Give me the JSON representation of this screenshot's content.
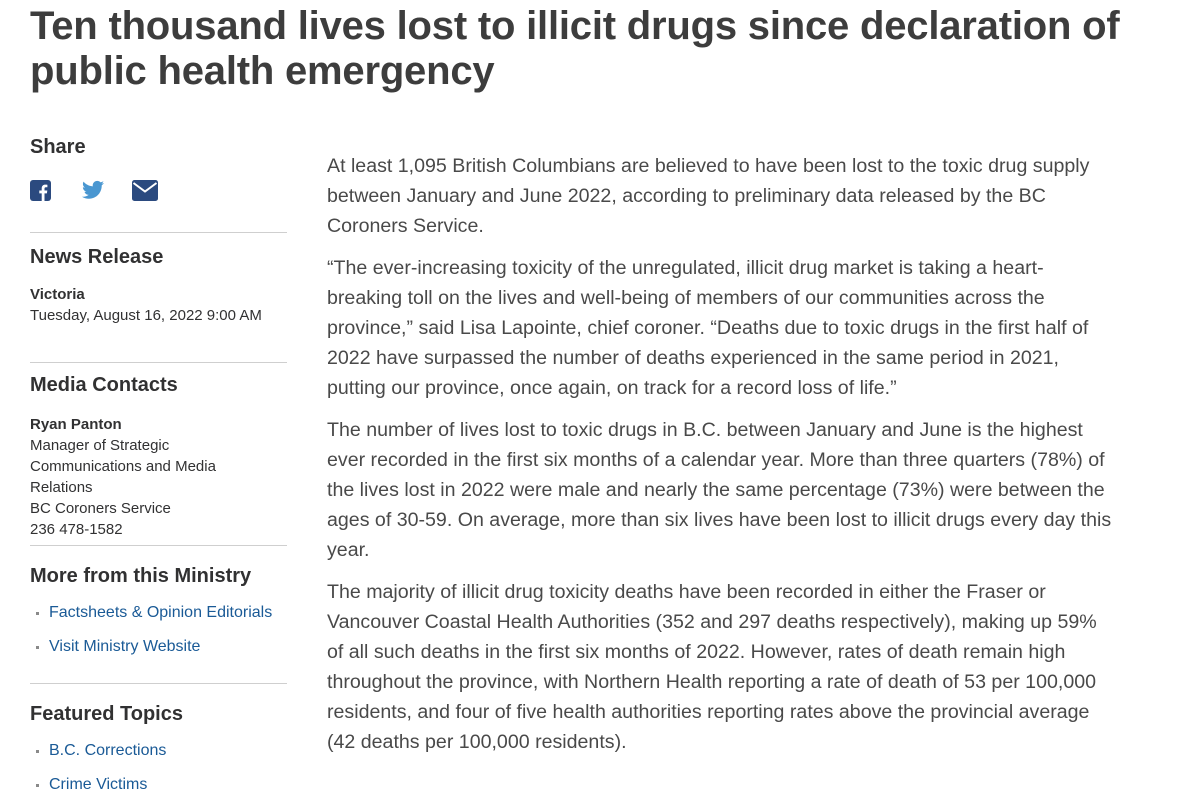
{
  "title": "Ten thousand lives lost to illicit drugs since declaration of public health emergency",
  "sidebar": {
    "share": {
      "heading": "Share"
    },
    "news_release": {
      "heading": "News Release",
      "location": "Victoria",
      "date": "Tuesday, August 16, 2022 9:00 AM"
    },
    "media_contacts": {
      "heading": "Media Contacts",
      "name": "Ryan Panton",
      "lines": [
        "Manager of Strategic Communications and Media Relations",
        "BC Coroners Service",
        "236 478-1582"
      ]
    },
    "more_from_ministry": {
      "heading": "More from this Ministry",
      "links": [
        "Factsheets & Opinion Editorials",
        "Visit Ministry Website"
      ]
    },
    "featured_topics": {
      "heading": "Featured Topics",
      "links": [
        "B.C. Corrections",
        "Crime Victims"
      ]
    }
  },
  "body": {
    "paragraphs": [
      "At least 1,095 British Columbians are believed to have been lost to the toxic drug supply between January and June 2022, according to preliminary data released by the BC Coroners Service.",
      "“The ever-increasing toxicity of the unregulated, illicit drug market is taking a heart-breaking toll on the lives and well-being of members of our communities across the province,” said Lisa Lapointe, chief coroner. “Deaths due to toxic drugs in the first half of 2022 have surpassed the number of deaths experienced in the same period in 2021, putting our province, once again, on track for a record loss of life.”",
      "The number of lives lost to toxic drugs in B.C. between January and June is the highest ever recorded in the first six months of a calendar year. More than three quarters (78%) of the lives lost in 2022 were male and nearly the same percentage (73%) were between the ages of 30-59. On average, more than six lives have been lost to illicit drugs every day this year.",
      "The majority of illicit drug toxicity deaths have been recorded in either the Fraser or Vancouver Coastal Health Authorities (352 and 297 deaths respectively), making up 59% of all such deaths in the first six months of 2022. However, rates of death remain high throughout the province, with Northern Health reporting a rate of death of 53 per 100,000 residents, and four of five health authorities reporting rates above the provincial average (42 deaths per 100,000 residents)."
    ]
  }
}
